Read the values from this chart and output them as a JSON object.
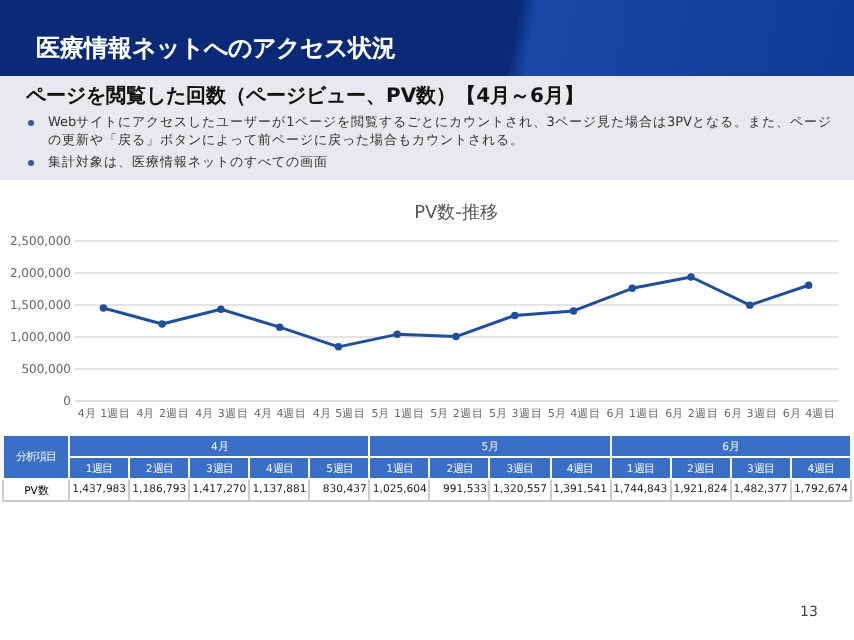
{
  "chart_data": {
    "type": "line",
    "title": "PV数-推移",
    "categories": [
      "4月 1週目",
      "4月 2週目",
      "4月 3週目",
      "4月 4週目",
      "4月 5週目",
      "5月 1週目",
      "5月 2週目",
      "5月 3週目",
      "5月 4週目",
      "6月 1週目",
      "6月 2週目",
      "6月 3週目",
      "6月 4週目"
    ],
    "series": [
      {
        "color": "#1f4e9a",
        "values": [
          1437983,
          1186793,
          1417270,
          1137881,
          830437,
          1025604,
          991533,
          1320557,
          1391541,
          1744843,
          1921824,
          1482377,
          1792674
        ]
      }
    ],
    "ylim": [
      0,
      2500000
    ],
    "yticks": [
      {
        "value": 0,
        "label": "0"
      },
      {
        "value": 500000,
        "label": "500,000"
      },
      {
        "value": 1000000,
        "label": "1,000,000"
      },
      {
        "value": 1500000,
        "label": "1,500,000"
      },
      {
        "value": 2000000,
        "label": "2,000,000"
      },
      {
        "value": 2500000,
        "label": "2,500,000"
      }
    ],
    "value_labels": [
      "1,437,983",
      "1,186,793",
      "1,417,270",
      "1,137,881",
      "830,437",
      "1,025,604",
      "991,533",
      "1,320,557",
      "1,391,541",
      "1,744,843",
      "1,921,824",
      "1,482,377",
      "1,792,674"
    ],
    "grid": "y",
    "marker": "circle",
    "annotations": [
      "医療情報ネットへのアクセス状況",
      "ページを閲覧した回数（ページビュー、PV数）【4月～6月】",
      "Webサイトにアクセスしたユーザーが1ページを閲覧するごとにカウントされ、3ページ見た場合は3PVとなる。また、ページの更新や「戻る」ボタンによって前ページに戻った場合もカウントされる。",
      "集計対象は、医療情報ネットのすべての画面",
      "分析項目",
      "4月",
      "5月",
      "6月",
      "1週目",
      "2週目",
      "3週目",
      "4週目",
      "5週目",
      "1週目",
      "2週目",
      "3週目",
      "4週目",
      "1週目",
      "2週目",
      "3週目",
      "4週目",
      "PV数",
      "13"
    ]
  }
}
